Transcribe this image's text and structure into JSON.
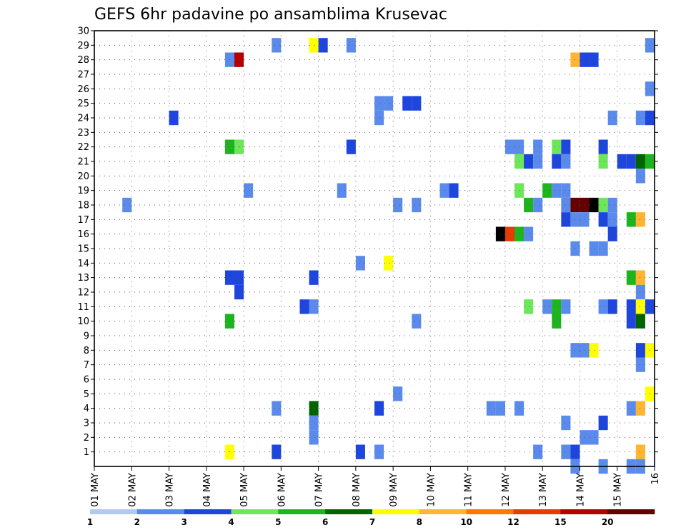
{
  "chart_data": {
    "type": "heatmap",
    "title": "GEFS 6hr padavine po ansamblima Krusevac",
    "xlabel": "",
    "ylabel": "",
    "x_ticks": [
      "01 MAY",
      "02 MAY",
      "03 MAY",
      "04 MAY",
      "05 MAY",
      "06 MAY",
      "07 MAY",
      "08 MAY",
      "09 MAY",
      "10 MAY",
      "11 MAY",
      "12 MAY",
      "13 MAY",
      "14 MAY",
      "15 MAY",
      "16"
    ],
    "y_range": [
      0,
      30
    ],
    "y_ticks": [
      1,
      2,
      3,
      4,
      5,
      6,
      7,
      8,
      9,
      10,
      11,
      12,
      13,
      14,
      15,
      16,
      17,
      18,
      19,
      20,
      21,
      22,
      23,
      24,
      25,
      26,
      27,
      28,
      29,
      30
    ],
    "time_step_hours": 6,
    "grid": true,
    "colorbar": {
      "labels": [
        "1",
        "2",
        "3",
        "4",
        "5",
        "6",
        "7",
        "8",
        "10",
        "12",
        "15",
        "20"
      ],
      "colors": [
        "#b4c8f0",
        "#5a8aeb",
        "#1e46dc",
        "#6ee65a",
        "#1eb41e",
        "#006400",
        "#ffff00",
        "#ffb432",
        "#ff7800",
        "#e63c00",
        "#b40000",
        "#640000"
      ]
    },
    "cells": [
      [
        19,
        29,
        1
      ],
      [
        23,
        29,
        6
      ],
      [
        24,
        29,
        2
      ],
      [
        27,
        29,
        1
      ],
      [
        59,
        29,
        1
      ],
      [
        14,
        28,
        1
      ],
      [
        15,
        28,
        10
      ],
      [
        51,
        28,
        7
      ],
      [
        52,
        28,
        2
      ],
      [
        53,
        28,
        2
      ],
      [
        59,
        26,
        1
      ],
      [
        30,
        25,
        1
      ],
      [
        31,
        25,
        1
      ],
      [
        33,
        25,
        2
      ],
      [
        34,
        25,
        2
      ],
      [
        8,
        24,
        2
      ],
      [
        30,
        24,
        1
      ],
      [
        55,
        24,
        1
      ],
      [
        58,
        24,
        1
      ],
      [
        59,
        24,
        2
      ],
      [
        14,
        22,
        4
      ],
      [
        15,
        22,
        3
      ],
      [
        27,
        22,
        2
      ],
      [
        44,
        22,
        1
      ],
      [
        45,
        22,
        1
      ],
      [
        47,
        22,
        1
      ],
      [
        49,
        22,
        3
      ],
      [
        50,
        22,
        2
      ],
      [
        54,
        22,
        2
      ],
      [
        45,
        21,
        3
      ],
      [
        46,
        21,
        2
      ],
      [
        47,
        21,
        1
      ],
      [
        49,
        21,
        2
      ],
      [
        50,
        21,
        1
      ],
      [
        54,
        21,
        3
      ],
      [
        56,
        21,
        2
      ],
      [
        57,
        21,
        2
      ],
      [
        58,
        21,
        5
      ],
      [
        59,
        21,
        4
      ],
      [
        58,
        20,
        1
      ],
      [
        16,
        19,
        1
      ],
      [
        26,
        19,
        1
      ],
      [
        37,
        19,
        1
      ],
      [
        38,
        19,
        2
      ],
      [
        45,
        19,
        3
      ],
      [
        48,
        19,
        4
      ],
      [
        49,
        19,
        1
      ],
      [
        50,
        19,
        1
      ],
      [
        3,
        18,
        1
      ],
      [
        32,
        18,
        1
      ],
      [
        34,
        18,
        1
      ],
      [
        46,
        18,
        4
      ],
      [
        47,
        18,
        1
      ],
      [
        50,
        18,
        1
      ],
      [
        51,
        18,
        11
      ],
      [
        52,
        18,
        11
      ],
      [
        53,
        18,
        12
      ],
      [
        54,
        18,
        3
      ],
      [
        55,
        18,
        1
      ],
      [
        50,
        17,
        2
      ],
      [
        51,
        17,
        1
      ],
      [
        52,
        17,
        1
      ],
      [
        54,
        17,
        2
      ],
      [
        55,
        17,
        1
      ],
      [
        57,
        17,
        4
      ],
      [
        58,
        17,
        7
      ],
      [
        43,
        16,
        12
      ],
      [
        44,
        16,
        9
      ],
      [
        45,
        16,
        4
      ],
      [
        46,
        16,
        1
      ],
      [
        55,
        16,
        2
      ],
      [
        51,
        15,
        1
      ],
      [
        53,
        15,
        1
      ],
      [
        54,
        15,
        1
      ],
      [
        28,
        14,
        1
      ],
      [
        31,
        14,
        6
      ],
      [
        14,
        13,
        2
      ],
      [
        15,
        13,
        2
      ],
      [
        23,
        13,
        2
      ],
      [
        57,
        13,
        4
      ],
      [
        58,
        13,
        7
      ],
      [
        15,
        12,
        2
      ],
      [
        58,
        12,
        1
      ],
      [
        22,
        11,
        2
      ],
      [
        23,
        11,
        1
      ],
      [
        46,
        11,
        3
      ],
      [
        48,
        11,
        1
      ],
      [
        49,
        11,
        4
      ],
      [
        50,
        11,
        1
      ],
      [
        54,
        11,
        1
      ],
      [
        55,
        11,
        2
      ],
      [
        57,
        11,
        2
      ],
      [
        58,
        11,
        6
      ],
      [
        59,
        11,
        2
      ],
      [
        14,
        10,
        4
      ],
      [
        34,
        10,
        1
      ],
      [
        49,
        10,
        4
      ],
      [
        57,
        10,
        2
      ],
      [
        58,
        10,
        5
      ],
      [
        58,
        8,
        2
      ],
      [
        51,
        8,
        1
      ],
      [
        52,
        8,
        1
      ],
      [
        53,
        8,
        6
      ],
      [
        59,
        8,
        6
      ],
      [
        58,
        7,
        1
      ],
      [
        59,
        5,
        6
      ],
      [
        32,
        5,
        1
      ],
      [
        19,
        4,
        1
      ],
      [
        23,
        4,
        5
      ],
      [
        30,
        4,
        2
      ],
      [
        42,
        4,
        1
      ],
      [
        43,
        4,
        1
      ],
      [
        45,
        4,
        1
      ],
      [
        57,
        4,
        1
      ],
      [
        58,
        4,
        7
      ],
      [
        23,
        3,
        1
      ],
      [
        50,
        3,
        1
      ],
      [
        54,
        3,
        2
      ],
      [
        23,
        2,
        1
      ],
      [
        52,
        2,
        1
      ],
      [
        53,
        2,
        1
      ],
      [
        14,
        1,
        6
      ],
      [
        19,
        1,
        2
      ],
      [
        28,
        1,
        2
      ],
      [
        30,
        1,
        1
      ],
      [
        47,
        1,
        1
      ],
      [
        50,
        1,
        1
      ],
      [
        51,
        1,
        2
      ],
      [
        58,
        1,
        7
      ],
      [
        51,
        0,
        1
      ],
      [
        54,
        0,
        1
      ],
      [
        57,
        0,
        1
      ],
      [
        58,
        0,
        1
      ]
    ]
  }
}
